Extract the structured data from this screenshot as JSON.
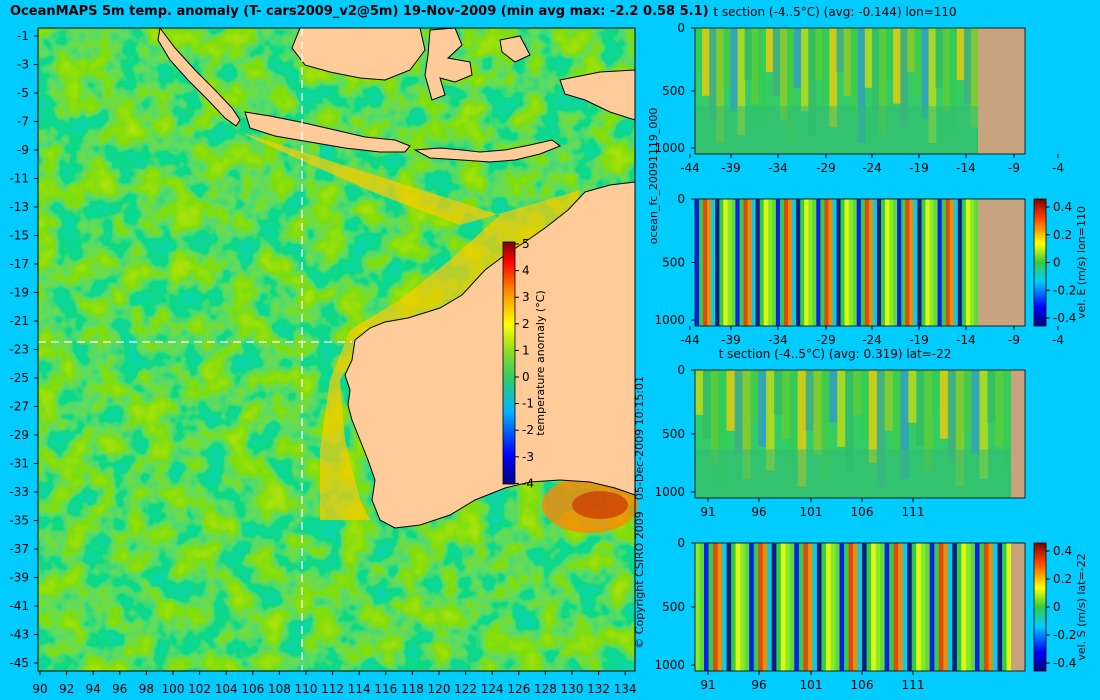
{
  "title": "OceanMAPS 5m temp. anomaly (T- cars2009_v2@5m) 19-Nov-2009 (min avg max: -2.2 0.58 5.1)",
  "side_labels": {
    "run_id": "ocean_fc_20091119_000",
    "timestamp": "05-Dec-2009 10:15:01",
    "copyright": "© Copyright CSIRO 2009"
  },
  "colors": {
    "background": "#00ccff",
    "land": "#ffcc99",
    "section_land": "#c8a47e",
    "ocean_base": "#33cc33",
    "crosshair": "#ffffff"
  },
  "chart_data": [
    {
      "id": "map",
      "type": "heatmap",
      "title": "OceanMAPS 5m temp. anomaly (T- cars2009_v2@5m) 19-Nov-2009 (min avg max: -2.2 0.58 5.1)",
      "x_ticks": [
        "90",
        "92",
        "94",
        "96",
        "98",
        "100",
        "102",
        "104",
        "106",
        "108",
        "110",
        "112",
        "114",
        "116",
        "118",
        "120",
        "122",
        "124",
        "126",
        "128",
        "130",
        "132",
        "134"
      ],
      "y_ticks": [
        "-1",
        "-3",
        "-5",
        "-7",
        "-9",
        "-11",
        "-13",
        "-15",
        "-17",
        "-19",
        "-21",
        "-23",
        "-25",
        "-27",
        "-29",
        "-31",
        "-33",
        "-35",
        "-37",
        "-39",
        "-41",
        "-43",
        "-45"
      ],
      "xlim": [
        89.5,
        135
      ],
      "ylim": [
        -45,
        0
      ],
      "crosshair": {
        "lon": 110,
        "lat": -22
      },
      "colorbar": {
        "label": "temperature anomaly (°C)",
        "ticks": [
          "5",
          "4",
          "3",
          "2",
          "1",
          "0",
          "-1",
          "-2",
          "-3",
          "-4"
        ],
        "range": [
          -4,
          5
        ]
      }
    },
    {
      "id": "t-section-lon110",
      "type": "heatmap",
      "title": "t section (-4..5°C) (avg: -0.144) lon=110",
      "x_ticks": [
        "-44",
        "-39",
        "-34",
        "-29",
        "-24",
        "-19",
        "-14",
        "-9",
        "-4"
      ],
      "y_ticks": [
        "0",
        "500",
        "1000"
      ]
    },
    {
      "id": "vel-e-lon110",
      "type": "heatmap",
      "title": "",
      "x_ticks": [
        "-44",
        "-39",
        "-34",
        "-29",
        "-24",
        "-19",
        "-14",
        "-9",
        "-4"
      ],
      "y_ticks": [
        "0",
        "500",
        "1000"
      ],
      "colorbar": {
        "label": "vel. E (m/s) lon=110",
        "ticks": [
          "0.4",
          "0.2",
          "0",
          "-0.2",
          "-0.4"
        ],
        "range": [
          -0.4,
          0.4
        ]
      }
    },
    {
      "id": "t-section-lat-22",
      "type": "heatmap",
      "title": "t section (-4..5°C) (avg: 0.319) lat=-22",
      "x_ticks": [
        "91",
        "96",
        "101",
        "106",
        "111"
      ],
      "y_ticks": [
        "0",
        "500",
        "1000"
      ]
    },
    {
      "id": "vel-s-lat-22",
      "type": "heatmap",
      "title": "",
      "x_ticks": [
        "91",
        "96",
        "101",
        "106",
        "111"
      ],
      "y_ticks": [
        "0",
        "500",
        "1000"
      ],
      "colorbar": {
        "label": "vel. S (m/s) lat=-22",
        "ticks": [
          "0.4",
          "0.2",
          "0",
          "-0.2",
          "-0.4"
        ],
        "range": [
          -0.4,
          0.4
        ]
      }
    }
  ]
}
